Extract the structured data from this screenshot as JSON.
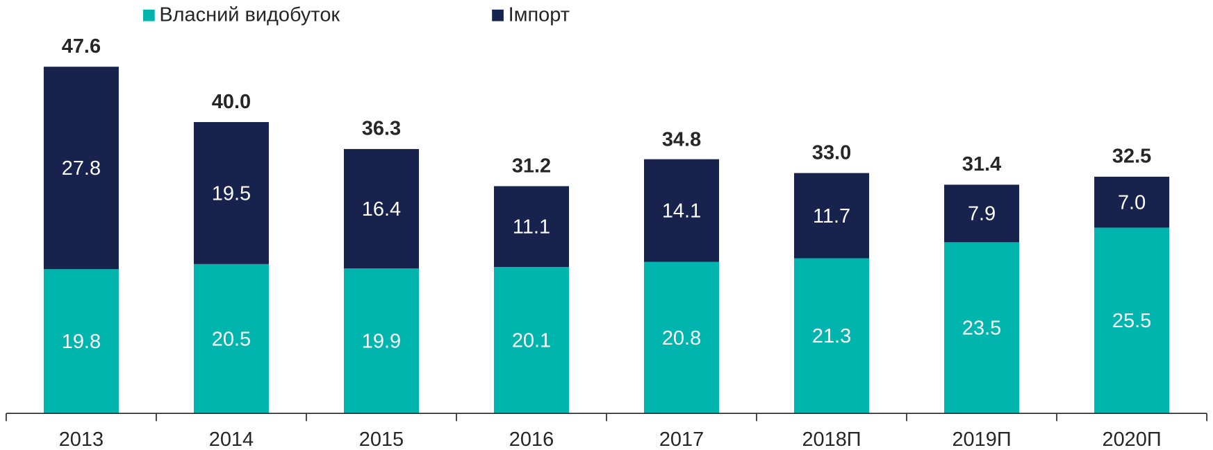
{
  "chart_data": {
    "type": "stacked-bar",
    "categories": [
      "2013",
      "2014",
      "2015",
      "2016",
      "2017",
      "2018П",
      "2019П",
      "2020П"
    ],
    "series": [
      {
        "name": "Власний видобуток",
        "color": "#00b5ad",
        "values": [
          19.8,
          20.5,
          19.9,
          20.1,
          20.8,
          21.3,
          23.5,
          25.5
        ]
      },
      {
        "name": "Імпорт",
        "color": "#17224d",
        "values": [
          27.8,
          19.5,
          16.4,
          11.1,
          14.1,
          11.7,
          7.9,
          7
        ],
        "value_labels": [
          "27.8",
          "19.5",
          "16.4",
          "11.1",
          "14.1",
          "11.7",
          "7.9",
          "7.0"
        ]
      }
    ],
    "totals": [
      47.6,
      40,
      36.3,
      31.2,
      34.8,
      33,
      31.4,
      32.5
    ],
    "total_labels": [
      "47.6",
      "40.0",
      "36.3",
      "31.2",
      "34.8",
      "33.0",
      "31.4",
      "32.5"
    ],
    "legend": "top"
  }
}
